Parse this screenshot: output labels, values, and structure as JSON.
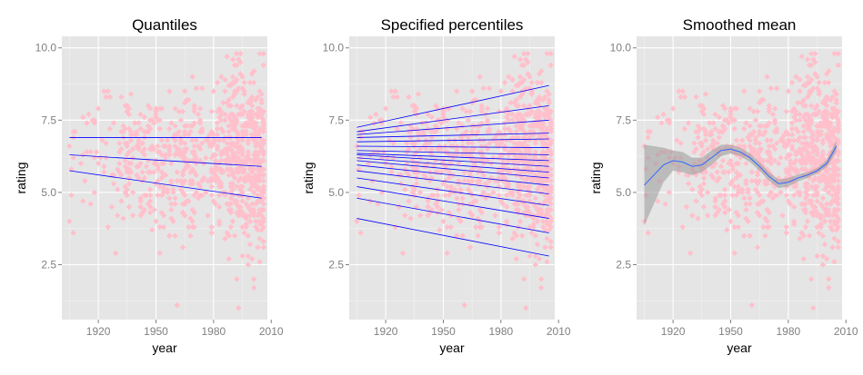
{
  "chart_data": [
    {
      "type": "scatter",
      "title": "Quantiles",
      "xlabel": "year",
      "ylabel": "rating",
      "xlim": [
        1901,
        2008
      ],
      "ylim": [
        0.6,
        10.4
      ],
      "xticks": [
        1920,
        1950,
        1980,
        2010
      ],
      "yticks": [
        2.5,
        5.0,
        7.5,
        10.0
      ],
      "xtick_labels": [
        "1920",
        "1950",
        "1980",
        "2010"
      ],
      "ytick_labels": [
        "2.5",
        "5.0",
        "7.5",
        "10.0"
      ],
      "grid": true,
      "point_color": "#ffc0cb",
      "line_color": "#0000ff",
      "lines": [
        {
          "x": [
            1905,
            2005
          ],
          "y": [
            6.9,
            6.9
          ]
        },
        {
          "x": [
            1905,
            2005
          ],
          "y": [
            6.3,
            5.9
          ]
        },
        {
          "x": [
            1905,
            2005
          ],
          "y": [
            5.75,
            4.8
          ]
        }
      ]
    },
    {
      "type": "scatter",
      "title": "Specified percentiles",
      "xlabel": "year",
      "ylabel": "rating",
      "xlim": [
        1901,
        2008
      ],
      "ylim": [
        0.6,
        10.4
      ],
      "xticks": [
        1920,
        1950,
        1980,
        2010
      ],
      "yticks": [
        2.5,
        5.0,
        7.5,
        10.0
      ],
      "xtick_labels": [
        "1920",
        "1950",
        "1980",
        "2010"
      ],
      "ytick_labels": [
        "2.5",
        "5.0",
        "7.5",
        "10.0"
      ],
      "grid": true,
      "point_color": "#ffc0cb",
      "line_color": "#0000ff",
      "lines": [
        {
          "x": [
            1905,
            2005
          ],
          "y": [
            7.25,
            8.7
          ]
        },
        {
          "x": [
            1905,
            2005
          ],
          "y": [
            7.1,
            8.0
          ]
        },
        {
          "x": [
            1905,
            2005
          ],
          "y": [
            7.0,
            7.5
          ]
        },
        {
          "x": [
            1905,
            2005
          ],
          "y": [
            6.9,
            7.05
          ]
        },
        {
          "x": [
            1905,
            2005
          ],
          "y": [
            6.75,
            6.85
          ]
        },
        {
          "x": [
            1905,
            2005
          ],
          "y": [
            6.6,
            6.55
          ]
        },
        {
          "x": [
            1905,
            2005
          ],
          "y": [
            6.45,
            6.3
          ]
        },
        {
          "x": [
            1905,
            2005
          ],
          "y": [
            6.35,
            6.1
          ]
        },
        {
          "x": [
            1905,
            2005
          ],
          "y": [
            6.3,
            5.9
          ]
        },
        {
          "x": [
            1905,
            2005
          ],
          "y": [
            6.2,
            5.7
          ]
        },
        {
          "x": [
            1905,
            2005
          ],
          "y": [
            6.1,
            5.5
          ]
        },
        {
          "x": [
            1905,
            2005
          ],
          "y": [
            5.95,
            5.25
          ]
        },
        {
          "x": [
            1905,
            2005
          ],
          "y": [
            5.75,
            4.95
          ]
        },
        {
          "x": [
            1905,
            2005
          ],
          "y": [
            5.5,
            4.55
          ]
        },
        {
          "x": [
            1905,
            2005
          ],
          "y": [
            5.2,
            4.1
          ]
        },
        {
          "x": [
            1905,
            2005
          ],
          "y": [
            4.8,
            3.6
          ]
        },
        {
          "x": [
            1905,
            2005
          ],
          "y": [
            4.1,
            2.8
          ]
        }
      ]
    },
    {
      "type": "scatter",
      "title": "Smoothed mean",
      "xlabel": "year",
      "ylabel": "rating",
      "xlim": [
        1901,
        2008
      ],
      "ylim": [
        0.6,
        10.4
      ],
      "xticks": [
        1920,
        1950,
        1980,
        2010
      ],
      "yticks": [
        2.5,
        5.0,
        7.5,
        10.0
      ],
      "xtick_labels": [
        "1920",
        "1950",
        "1980",
        "2010"
      ],
      "ytick_labels": [
        "2.5",
        "5.0",
        "7.5",
        "10.0"
      ],
      "grid": true,
      "point_color": "#ffc0cb",
      "line_color": "#3366ff",
      "band_color": "#999999",
      "smooth": {
        "x": [
          1905,
          1910,
          1915,
          1920,
          1925,
          1930,
          1935,
          1940,
          1945,
          1950,
          1955,
          1960,
          1965,
          1970,
          1975,
          1980,
          1985,
          1990,
          1995,
          2000,
          2005
        ],
        "y": [
          5.25,
          5.6,
          5.95,
          6.1,
          6.05,
          5.9,
          5.95,
          6.2,
          6.45,
          6.5,
          6.4,
          6.2,
          5.9,
          5.55,
          5.3,
          5.35,
          5.5,
          5.6,
          5.75,
          6.0,
          6.6
        ],
        "ymin": [
          3.85,
          4.6,
          5.35,
          5.75,
          5.7,
          5.6,
          5.7,
          5.95,
          6.25,
          6.35,
          6.25,
          6.05,
          5.75,
          5.4,
          5.15,
          5.2,
          5.38,
          5.5,
          5.65,
          5.88,
          6.4
        ],
        "ymax": [
          6.65,
          6.6,
          6.55,
          6.45,
          6.4,
          6.2,
          6.2,
          6.45,
          6.65,
          6.65,
          6.55,
          6.35,
          6.05,
          5.7,
          5.45,
          5.5,
          5.62,
          5.7,
          5.85,
          6.12,
          6.8
        ]
      }
    }
  ]
}
